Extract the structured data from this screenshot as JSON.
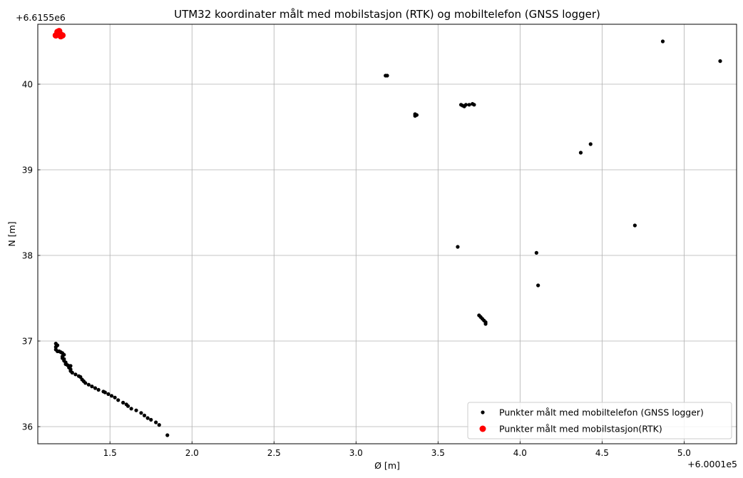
{
  "chart_data": {
    "type": "scatter",
    "title": "UTM32 koordinater målt med mobilstasjon (RTK) og mobiltelefon (GNSS logger)",
    "xlabel": "Ø [m]",
    "ylabel": "N [m]",
    "x_offset_label": "+6.0001e5",
    "y_offset_label": "+6.6155e6",
    "xlim": [
      1.06,
      5.32
    ],
    "ylim": [
      35.8,
      40.7
    ],
    "x_ticks": [
      1.5,
      2.0,
      2.5,
      3.0,
      3.5,
      4.0,
      4.5,
      5.0
    ],
    "x_tick_labels": [
      "1.5",
      "2.0",
      "2.5",
      "3.0",
      "3.5",
      "4.0",
      "4.5",
      "5.0"
    ],
    "y_ticks": [
      36,
      37,
      38,
      39,
      40
    ],
    "y_tick_labels": [
      "36",
      "37",
      "38",
      "39",
      "40"
    ],
    "grid": true,
    "legend_position": "bottom-right",
    "series": [
      {
        "name": "Punkter målt med mobiltelefon (GNSS logger)",
        "color": "#000000",
        "marker_size": "small",
        "points": [
          [
            1.17,
            36.97
          ],
          [
            1.18,
            36.95
          ],
          [
            1.17,
            36.93
          ],
          [
            1.17,
            36.9
          ],
          [
            1.18,
            36.88
          ],
          [
            1.19,
            36.88
          ],
          [
            1.2,
            36.87
          ],
          [
            1.21,
            36.86
          ],
          [
            1.22,
            36.84
          ],
          [
            1.21,
            36.82
          ],
          [
            1.21,
            36.8
          ],
          [
            1.22,
            36.79
          ],
          [
            1.22,
            36.77
          ],
          [
            1.23,
            36.75
          ],
          [
            1.23,
            36.73
          ],
          [
            1.24,
            36.72
          ],
          [
            1.25,
            36.71
          ],
          [
            1.26,
            36.71
          ],
          [
            1.25,
            36.69
          ],
          [
            1.26,
            36.67
          ],
          [
            1.26,
            36.65
          ],
          [
            1.27,
            36.63
          ],
          [
            1.29,
            36.61
          ],
          [
            1.31,
            36.59
          ],
          [
            1.32,
            36.58
          ],
          [
            1.33,
            36.55
          ],
          [
            1.34,
            36.53
          ],
          [
            1.35,
            36.51
          ],
          [
            1.37,
            36.49
          ],
          [
            1.39,
            36.47
          ],
          [
            1.41,
            36.45
          ],
          [
            1.43,
            36.43
          ],
          [
            1.46,
            36.41
          ],
          [
            1.47,
            36.4
          ],
          [
            1.49,
            36.38
          ],
          [
            1.51,
            36.36
          ],
          [
            1.53,
            36.34
          ],
          [
            1.55,
            36.31
          ],
          [
            1.58,
            36.28
          ],
          [
            1.6,
            36.26
          ],
          [
            1.61,
            36.24
          ],
          [
            1.63,
            36.21
          ],
          [
            1.66,
            36.19
          ],
          [
            1.69,
            36.16
          ],
          [
            1.71,
            36.13
          ],
          [
            1.73,
            36.1
          ],
          [
            1.75,
            36.08
          ],
          [
            1.78,
            36.05
          ],
          [
            1.8,
            36.02
          ],
          [
            1.85,
            35.9
          ],
          [
            3.18,
            40.1
          ],
          [
            3.19,
            40.1
          ],
          [
            3.36,
            39.65
          ],
          [
            3.36,
            39.63
          ],
          [
            3.37,
            39.64
          ],
          [
            3.64,
            39.76
          ],
          [
            3.65,
            39.75
          ],
          [
            3.66,
            39.74
          ],
          [
            3.67,
            39.76
          ],
          [
            3.69,
            39.76
          ],
          [
            3.71,
            39.77
          ],
          [
            3.72,
            39.76
          ],
          [
            3.62,
            38.1
          ],
          [
            3.75,
            37.3
          ],
          [
            3.76,
            37.28
          ],
          [
            3.77,
            37.26
          ],
          [
            3.78,
            37.24
          ],
          [
            3.79,
            37.22
          ],
          [
            3.79,
            37.2
          ],
          [
            4.1,
            38.03
          ],
          [
            4.11,
            37.65
          ],
          [
            4.37,
            39.2
          ],
          [
            4.43,
            39.3
          ],
          [
            4.7,
            38.35
          ],
          [
            4.87,
            40.5
          ],
          [
            5.22,
            40.27
          ]
        ]
      },
      {
        "name": "Punkter målt med mobilstasjon(RTK)",
        "color": "#ff0000",
        "marker_size": "large",
        "points": [
          [
            1.17,
            40.57
          ],
          [
            1.18,
            40.59
          ],
          [
            1.18,
            40.61
          ],
          [
            1.19,
            40.58
          ],
          [
            1.19,
            40.6
          ],
          [
            1.2,
            40.58
          ],
          [
            1.2,
            40.56
          ],
          [
            1.21,
            40.57
          ],
          [
            1.19,
            40.62
          ]
        ]
      }
    ]
  }
}
